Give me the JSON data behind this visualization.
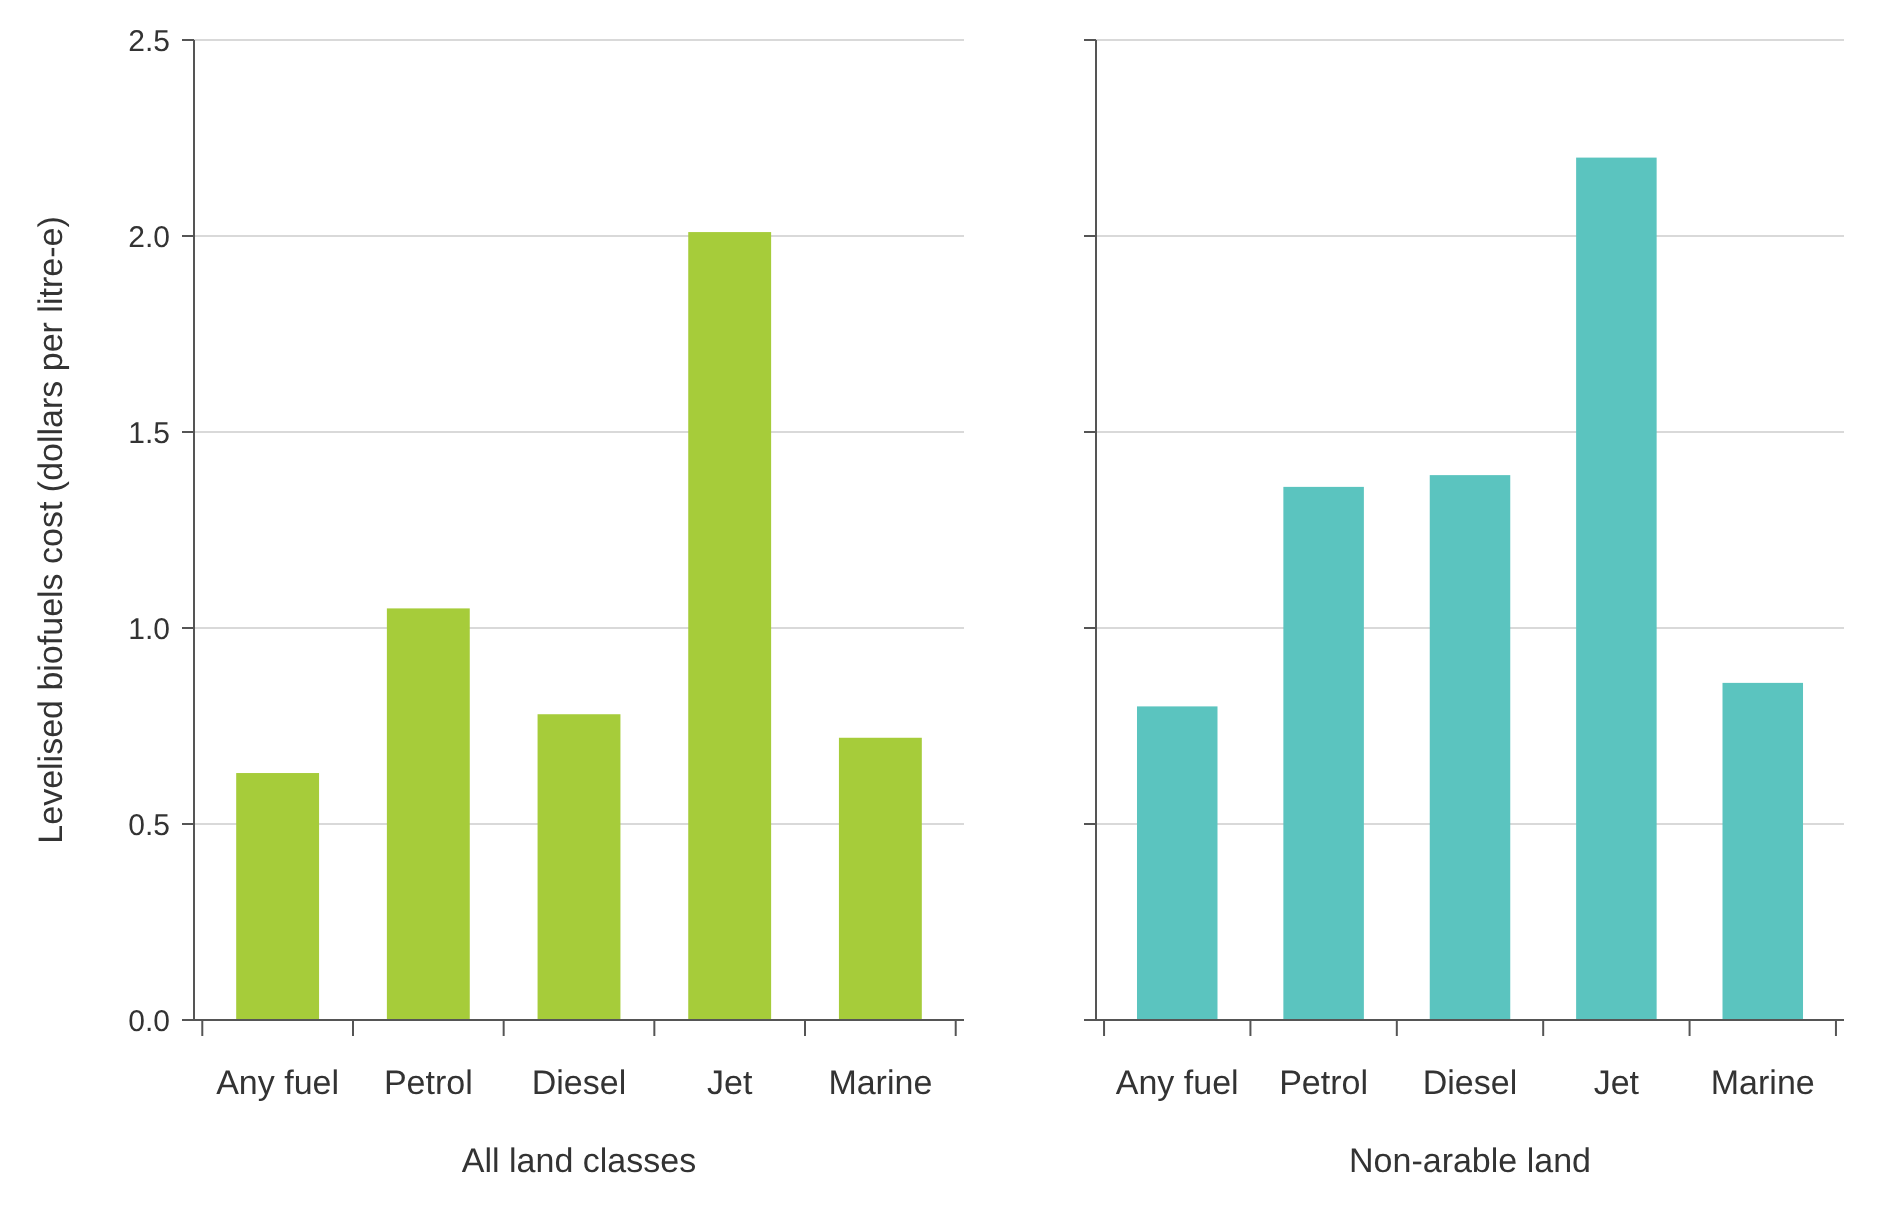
{
  "chart_data": [
    {
      "type": "bar",
      "xlabel": "All land classes",
      "ylabel": "Levelised biofuels cost (dollars per litre-e)",
      "categories": [
        "Any fuel",
        "Petrol",
        "Diesel",
        "Jet",
        "Marine"
      ],
      "values": [
        0.63,
        1.05,
        0.78,
        2.01,
        0.72
      ],
      "color": "#a6cc3a",
      "ylim": [
        0,
        2.5
      ],
      "yticks": [
        {
          "value": 0,
          "label": "0.0"
        },
        {
          "value": 0.5,
          "label": "0.5"
        },
        {
          "value": 1,
          "label": "1.0"
        },
        {
          "value": 1.5,
          "label": "1.5"
        },
        {
          "value": 2,
          "label": "2.0"
        },
        {
          "value": 2.5,
          "label": "2.5"
        }
      ],
      "grid": "y"
    },
    {
      "type": "bar",
      "xlabel": "Non-arable land",
      "categories": [
        "Any fuel",
        "Petrol",
        "Diesel",
        "Jet",
        "Marine"
      ],
      "values": [
        0.8,
        1.36,
        1.39,
        2.2,
        0.86
      ],
      "color": "#5bc4bf",
      "ylim": [
        0,
        2.5
      ],
      "yticks": [
        {
          "value": 0,
          "label": null
        },
        {
          "value": 0.5,
          "label": null
        },
        {
          "value": 1,
          "label": null
        },
        {
          "value": 1.5,
          "label": null
        },
        {
          "value": 2,
          "label": null
        },
        {
          "value": 2.5,
          "label": null
        }
      ],
      "grid": "y",
      "tick_labels": "x"
    }
  ]
}
